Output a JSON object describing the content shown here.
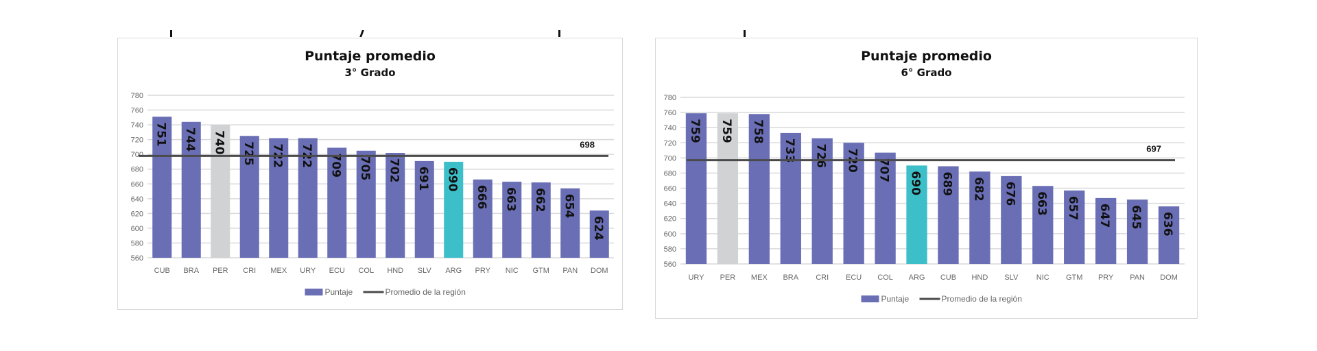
{
  "chart_data": [
    {
      "type": "bar",
      "title": "Puntaje promedio",
      "subtitle": "3° Grado",
      "categories": [
        "CUB",
        "BRA",
        "PER",
        "CRI",
        "MEX",
        "URY",
        "ECU",
        "COL",
        "HND",
        "SLV",
        "ARG",
        "PRY",
        "NIC",
        "GTM",
        "PAN",
        "DOM"
      ],
      "values": [
        751,
        744,
        740,
        725,
        722,
        722,
        709,
        705,
        702,
        691,
        690,
        666,
        663,
        662,
        654,
        624
      ],
      "highlight": {
        "PER": "#d0d2d3",
        "ARG": "#3dbfca"
      },
      "reference_line": {
        "name": "Promedio de la región",
        "value": 698,
        "label": "698"
      },
      "ylim": [
        560,
        780
      ],
      "yticks": [
        560,
        580,
        600,
        620,
        640,
        660,
        680,
        700,
        720,
        740,
        760,
        780
      ],
      "legend": [
        "Puntaje",
        "Promedio de la región"
      ],
      "legend_position": "bottom",
      "grid": true,
      "colors": {
        "bar": "#6a6fb5",
        "line": "#4a4a4a"
      }
    },
    {
      "type": "bar",
      "title": "Puntaje promedio",
      "subtitle": "6° Grado",
      "categories": [
        "URY",
        "PER",
        "MEX",
        "BRA",
        "CRI",
        "ECU",
        "COL",
        "ARG",
        "CUB",
        "HND",
        "SLV",
        "NIC",
        "GTM",
        "PRY",
        "PAN",
        "DOM"
      ],
      "values": [
        759,
        759,
        758,
        733,
        726,
        720,
        707,
        690,
        689,
        682,
        676,
        663,
        657,
        647,
        645,
        636
      ],
      "highlight": {
        "PER": "#d0d2d3",
        "ARG": "#3dbfca"
      },
      "reference_line": {
        "name": "Promedio de la región",
        "value": 697,
        "label": "697"
      },
      "ylim": [
        560,
        780
      ],
      "yticks": [
        560,
        580,
        600,
        620,
        640,
        660,
        680,
        700,
        720,
        740,
        760,
        780
      ],
      "legend": [
        "Puntaje",
        "Promedio de la región"
      ],
      "legend_position": "bottom",
      "grid": true,
      "colors": {
        "bar": "#6a6fb5",
        "line": "#4a4a4a"
      }
    }
  ]
}
